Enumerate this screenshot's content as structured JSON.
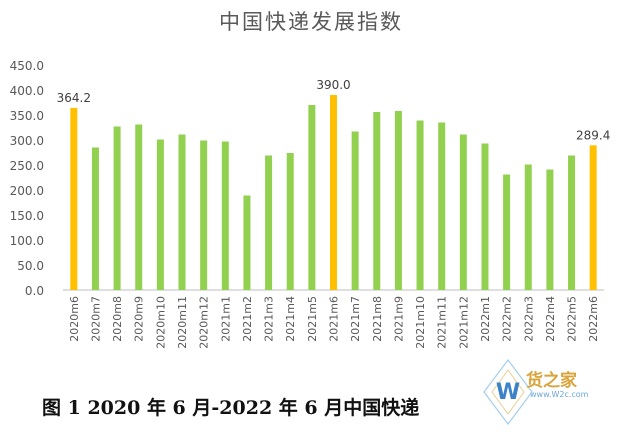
{
  "chart_data": {
    "type": "bar",
    "title": "中国快递发展指数",
    "caption": "图 1 2020 年 6 月-2022 年 6 月中国快递",
    "ylim": [
      0,
      450
    ],
    "yticks": [
      "0.0",
      "50.0",
      "100.0",
      "150.0",
      "200.0",
      "250.0",
      "300.0",
      "350.0",
      "400.0",
      "450.0"
    ],
    "grid": false,
    "legend": "none",
    "categories": [
      "2020m6",
      "2020m7",
      "2020m8",
      "2020m9",
      "2020m10",
      "2020m11",
      "2020m12",
      "2021m1",
      "2021m2",
      "2021m3",
      "2021m4",
      "2021m5",
      "2021m6",
      "2021m7",
      "2021m8",
      "2021m9",
      "2021m10",
      "2021m11",
      "2021m12",
      "2022m1",
      "2022m2",
      "2022m3",
      "2022m4",
      "2022m5",
      "2022m6"
    ],
    "values": [
      364.2,
      285,
      327,
      331,
      301,
      311,
      299,
      297,
      189,
      269,
      274,
      370,
      390.0,
      317,
      356,
      358,
      339,
      335,
      311,
      293,
      231,
      251,
      241,
      269,
      289.4
    ],
    "data_labels": {
      "0": "364.2",
      "12": "390.0",
      "24": "289.4"
    },
    "colors": {
      "normal": "#92d050",
      "highlight": "#ffc000"
    },
    "highlight_indices": [
      0,
      12,
      24
    ]
  },
  "watermark": {
    "text": "货之家",
    "letter": "W",
    "sub": "www.W2c.com"
  }
}
